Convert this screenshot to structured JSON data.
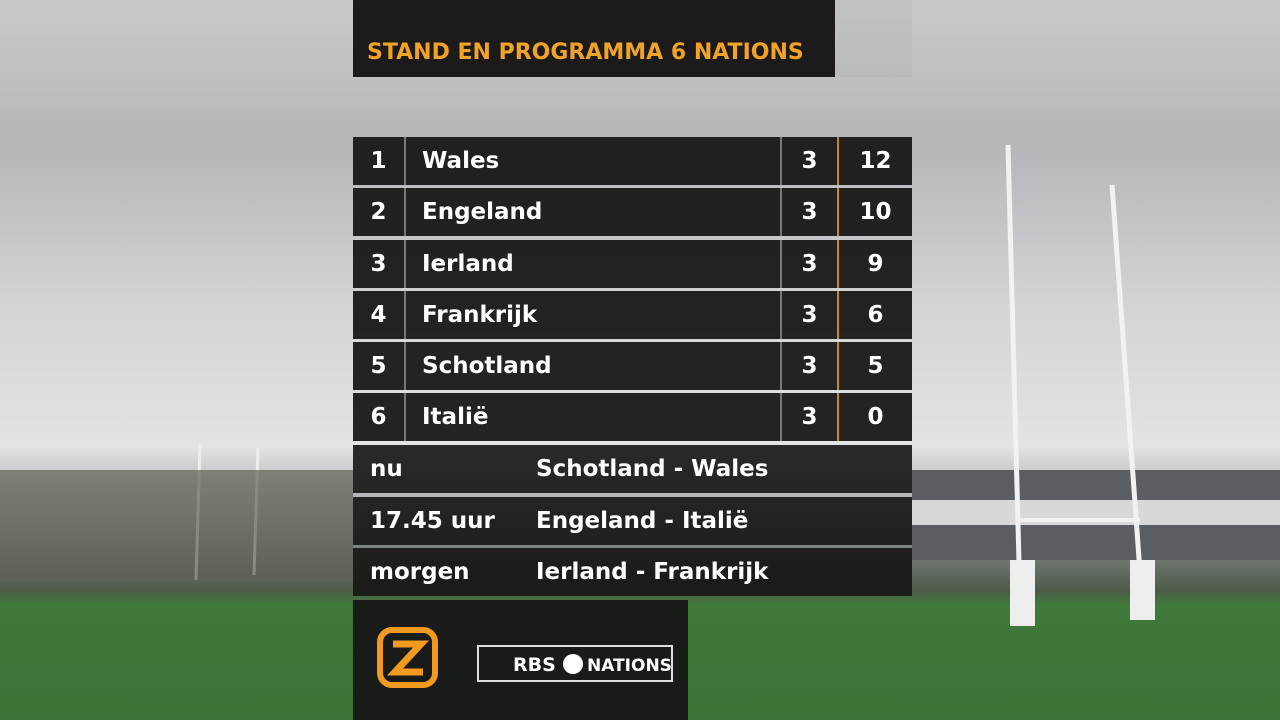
{
  "header": {
    "title": "STAND EN PROGRAMMA 6 NATIONS"
  },
  "standings": {
    "rows": [
      [
        "1",
        "Wales",
        "3",
        "12"
      ],
      [
        "2",
        "Engeland",
        "3",
        "10"
      ],
      [
        "3",
        "Ierland",
        "3",
        "9"
      ],
      [
        "4",
        "Frankrijk",
        "3",
        "6"
      ],
      [
        "5",
        "Schotland",
        "3",
        "5"
      ],
      [
        "6",
        "Italië",
        "3",
        "0"
      ]
    ]
  },
  "schedule": {
    "rows": [
      [
        "nu",
        "Schotland - Wales"
      ],
      [
        "17.45 uur",
        "Engeland - Italië"
      ],
      [
        "morgen",
        "Ierland - Frankrijk"
      ]
    ]
  },
  "logos": {
    "rbs": "RBS",
    "nations": "NATIONS"
  }
}
